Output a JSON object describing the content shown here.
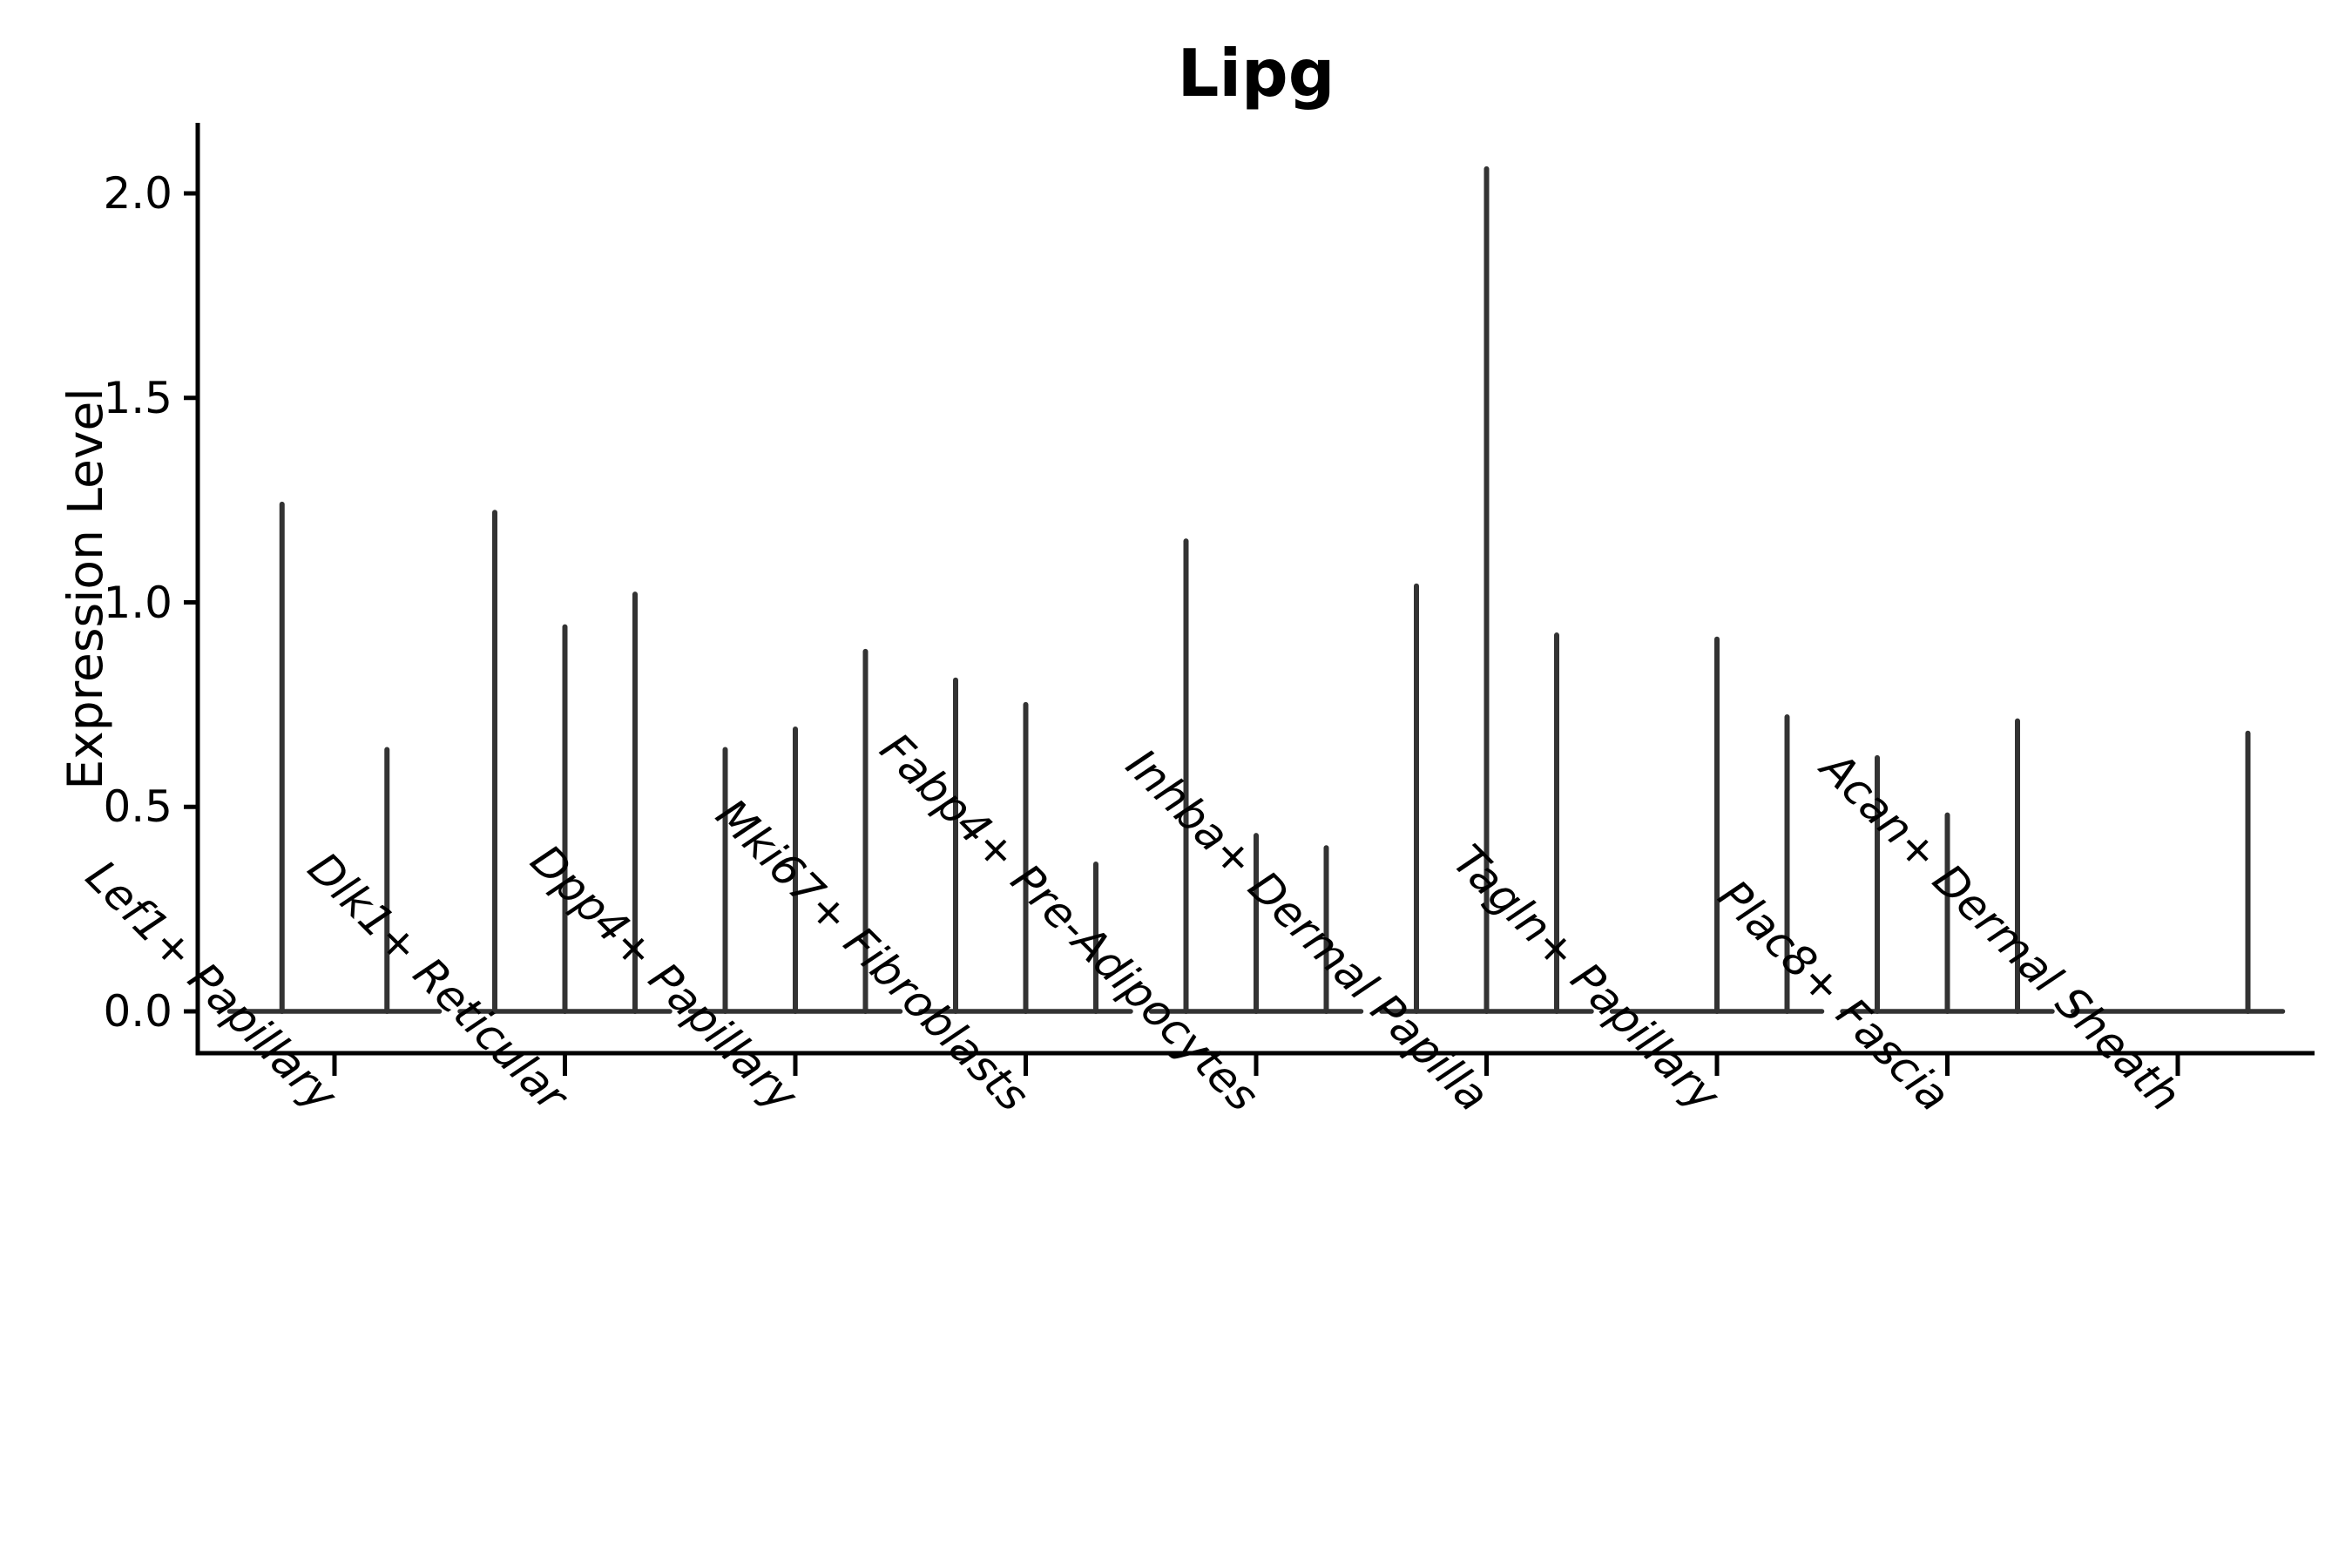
{
  "figure": {
    "title": "Lipg",
    "background_color": "#ffffff"
  },
  "chart_data": {
    "type": "violin",
    "title": "Lipg",
    "xlabel": "",
    "ylabel": "Expression Level",
    "ylim": [
      0,
      2.17
    ],
    "yticks": [
      "0.0",
      "0.5",
      "1.0",
      "1.5",
      "2.0"
    ],
    "ytick_values": [
      0.0,
      0.5,
      1.0,
      1.5,
      2.0
    ],
    "grid": false,
    "legend": "none",
    "categories": [
      "Lef1+ Papillary",
      "Dlk1+ Reticular",
      "Dpp4+ Papillary",
      "Mki67+ Fibroblasts",
      "Fabp4+ Pre-Adipocytes",
      "Inhba+ Dermal Papilla",
      "Tagln+ Papillary",
      "Plac8+ Fascia",
      "Acan+ Dermal Sheath"
    ],
    "groups": [
      {
        "category": "Lef1+ Papillary",
        "violin_maxima": [
          1.24,
          0.64
        ]
      },
      {
        "category": "Dlk1+ Reticular",
        "violin_maxima": [
          1.22,
          0.94,
          1.02
        ]
      },
      {
        "category": "Dpp4+ Papillary",
        "violin_maxima": [
          0.64,
          0.69,
          0.88
        ]
      },
      {
        "category": "Mki67+ Fibroblasts",
        "violin_maxima": [
          0.81,
          0.75,
          0.36
        ]
      },
      {
        "category": "Fabp4+ Pre-Adipocytes",
        "violin_maxima": [
          1.15,
          0.43,
          0.4
        ]
      },
      {
        "category": "Inhba+ Dermal Papilla",
        "violin_maxima": [
          1.04,
          2.06,
          0.92
        ]
      },
      {
        "category": "Tagln+ Papillary",
        "violin_maxima": [
          0.0,
          0.91,
          0.72
        ]
      },
      {
        "category": "Plac8+ Fascia",
        "violin_maxima": [
          0.62,
          0.48,
          0.71
        ]
      },
      {
        "category": "Acan+ Dermal Sheath",
        "violin_maxima": [
          0.0,
          0.0,
          0.68
        ]
      }
    ],
    "colors": {
      "violin_stroke": "#333333",
      "axis_stroke": "#000000",
      "text": "#000000"
    }
  }
}
